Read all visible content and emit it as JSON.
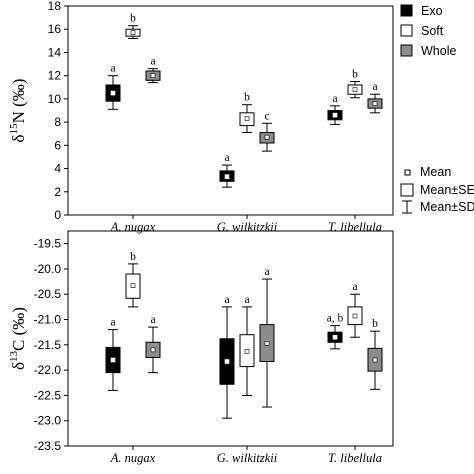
{
  "legend": {
    "groups": [
      {
        "label": "Exo",
        "color": "#000000"
      },
      {
        "label": "Soft",
        "color": "#ffffff"
      },
      {
        "label": "Whole",
        "color": "#8c8c8c"
      }
    ],
    "stats": [
      {
        "label": "Mean",
        "icon": "small-square-icon"
      },
      {
        "label": "Mean±SE",
        "icon": "box-icon"
      },
      {
        "label": "Mean±SD",
        "icon": "whisker-icon"
      }
    ]
  },
  "chart_data": [
    {
      "type": "box",
      "ylabel": "δ15N (‰)",
      "ylim": [
        0,
        18
      ],
      "yticks": [
        0,
        2,
        4,
        6,
        8,
        10,
        12,
        14,
        16,
        18
      ],
      "yticklabels": [
        "0",
        "2",
        "4",
        "6",
        "8",
        "10",
        "12",
        "14",
        "16",
        "18"
      ],
      "categories": [
        "A. nugax",
        "G. wilkitzkii",
        "T. libellula"
      ],
      "series": [
        {
          "name": "Exo",
          "mean": [
            10.5,
            3.3,
            8.6
          ],
          "se": [
            [
              9.8,
              11.2
            ],
            [
              2.9,
              3.8
            ],
            [
              8.2,
              9.0
            ]
          ],
          "sd": [
            [
              9.1,
              12.0
            ],
            [
              2.4,
              4.3
            ],
            [
              7.8,
              9.4
            ]
          ],
          "sig": [
            "a",
            "a",
            "a"
          ]
        },
        {
          "name": "Soft",
          "mean": [
            15.7,
            8.3,
            10.8
          ],
          "se": [
            [
              15.4,
              16.0
            ],
            [
              7.7,
              8.8
            ],
            [
              10.4,
              11.2
            ]
          ],
          "sd": [
            [
              15.2,
              16.3
            ],
            [
              7.1,
              9.5
            ],
            [
              10.1,
              11.5
            ]
          ],
          "sig": [
            "b",
            "b",
            "b"
          ]
        },
        {
          "name": "Whole",
          "mean": [
            12.0,
            6.7,
            9.6
          ],
          "se": [
            [
              11.6,
              12.4
            ],
            [
              6.2,
              7.1
            ],
            [
              9.2,
              10.0
            ]
          ],
          "sd": [
            [
              11.4,
              12.6
            ],
            [
              5.5,
              7.9
            ],
            [
              8.8,
              10.4
            ]
          ],
          "sig": [
            "a",
            "c",
            "a"
          ]
        }
      ]
    },
    {
      "type": "box",
      "ylabel": "δ13C (‰)",
      "ylim": [
        -23.5,
        -19.25
      ],
      "yticks": [
        -23.5,
        -23.0,
        -22.5,
        -22.0,
        -21.5,
        -21.0,
        -20.5,
        -20.0,
        -19.5
      ],
      "yticklabels": [
        "-23.5",
        "-23.0",
        "-22.5",
        "-22.0",
        "-21.5",
        "-21.0",
        "-20.5",
        "-20.0",
        "-19.5"
      ],
      "categories": [
        "A. nugax",
        "G. wilkitzkii",
        "T. libellula"
      ],
      "series": [
        {
          "name": "Exo",
          "mean": [
            -21.8,
            -21.83,
            -21.35
          ],
          "se": [
            [
              -22.05,
              -21.55
            ],
            [
              -22.28,
              -21.38
            ],
            [
              -21.45,
              -21.25
            ]
          ],
          "sd": [
            [
              -22.4,
              -21.2
            ],
            [
              -22.95,
              -20.75
            ],
            [
              -21.58,
              -21.12
            ]
          ],
          "sig": [
            "a",
            "a",
            "a, b"
          ]
        },
        {
          "name": "Soft",
          "mean": [
            -20.33,
            -21.63,
            -20.93
          ],
          "se": [
            [
              -20.58,
              -20.1
            ],
            [
              -21.93,
              -21.3
            ],
            [
              -21.1,
              -20.75
            ]
          ],
          "sd": [
            [
              -20.75,
              -19.9
            ],
            [
              -22.5,
              -20.75
            ],
            [
              -21.35,
              -20.5
            ]
          ],
          "sig": [
            "b",
            "a",
            "a"
          ]
        },
        {
          "name": "Whole",
          "mean": [
            -21.6,
            -21.47,
            -21.8
          ],
          "se": [
            [
              -21.75,
              -21.45
            ],
            [
              -21.83,
              -21.1
            ],
            [
              -22.02,
              -21.57
            ]
          ],
          "sd": [
            [
              -22.05,
              -21.15
            ],
            [
              -22.73,
              -20.2
            ],
            [
              -22.38,
              -21.23
            ]
          ],
          "sig": [
            "a",
            "a",
            "b"
          ]
        }
      ]
    }
  ]
}
